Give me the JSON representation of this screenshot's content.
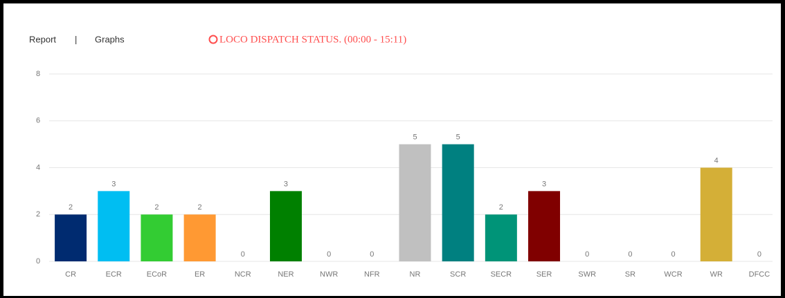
{
  "tabs": [
    "Report",
    "|",
    "Graphs"
  ],
  "chart_data": {
    "type": "bar",
    "title": "LOCO DISPATCH STATUS. (00:00 - 15:11)",
    "categories": [
      "CR",
      "ECR",
      "ECoR",
      "ER",
      "NCR",
      "NER",
      "NWR",
      "NFR",
      "NR",
      "SCR",
      "SECR",
      "SER",
      "SWR",
      "SR",
      "WCR",
      "WR",
      "DFCC"
    ],
    "values": [
      2,
      3,
      2,
      2,
      0,
      3,
      0,
      0,
      5,
      5,
      2,
      3,
      0,
      0,
      0,
      4,
      0
    ],
    "colors": [
      "#002b70",
      "#00bef2",
      "#33cc33",
      "#ff9933",
      null,
      "#008000",
      null,
      null,
      "#c0c0c0",
      "#008080",
      "#009478",
      "#800000",
      null,
      null,
      null,
      "#d4af37",
      null
    ],
    "ylim": [
      0,
      8
    ],
    "yticks": [
      0,
      2,
      4,
      6,
      8
    ],
    "grid": true
  }
}
